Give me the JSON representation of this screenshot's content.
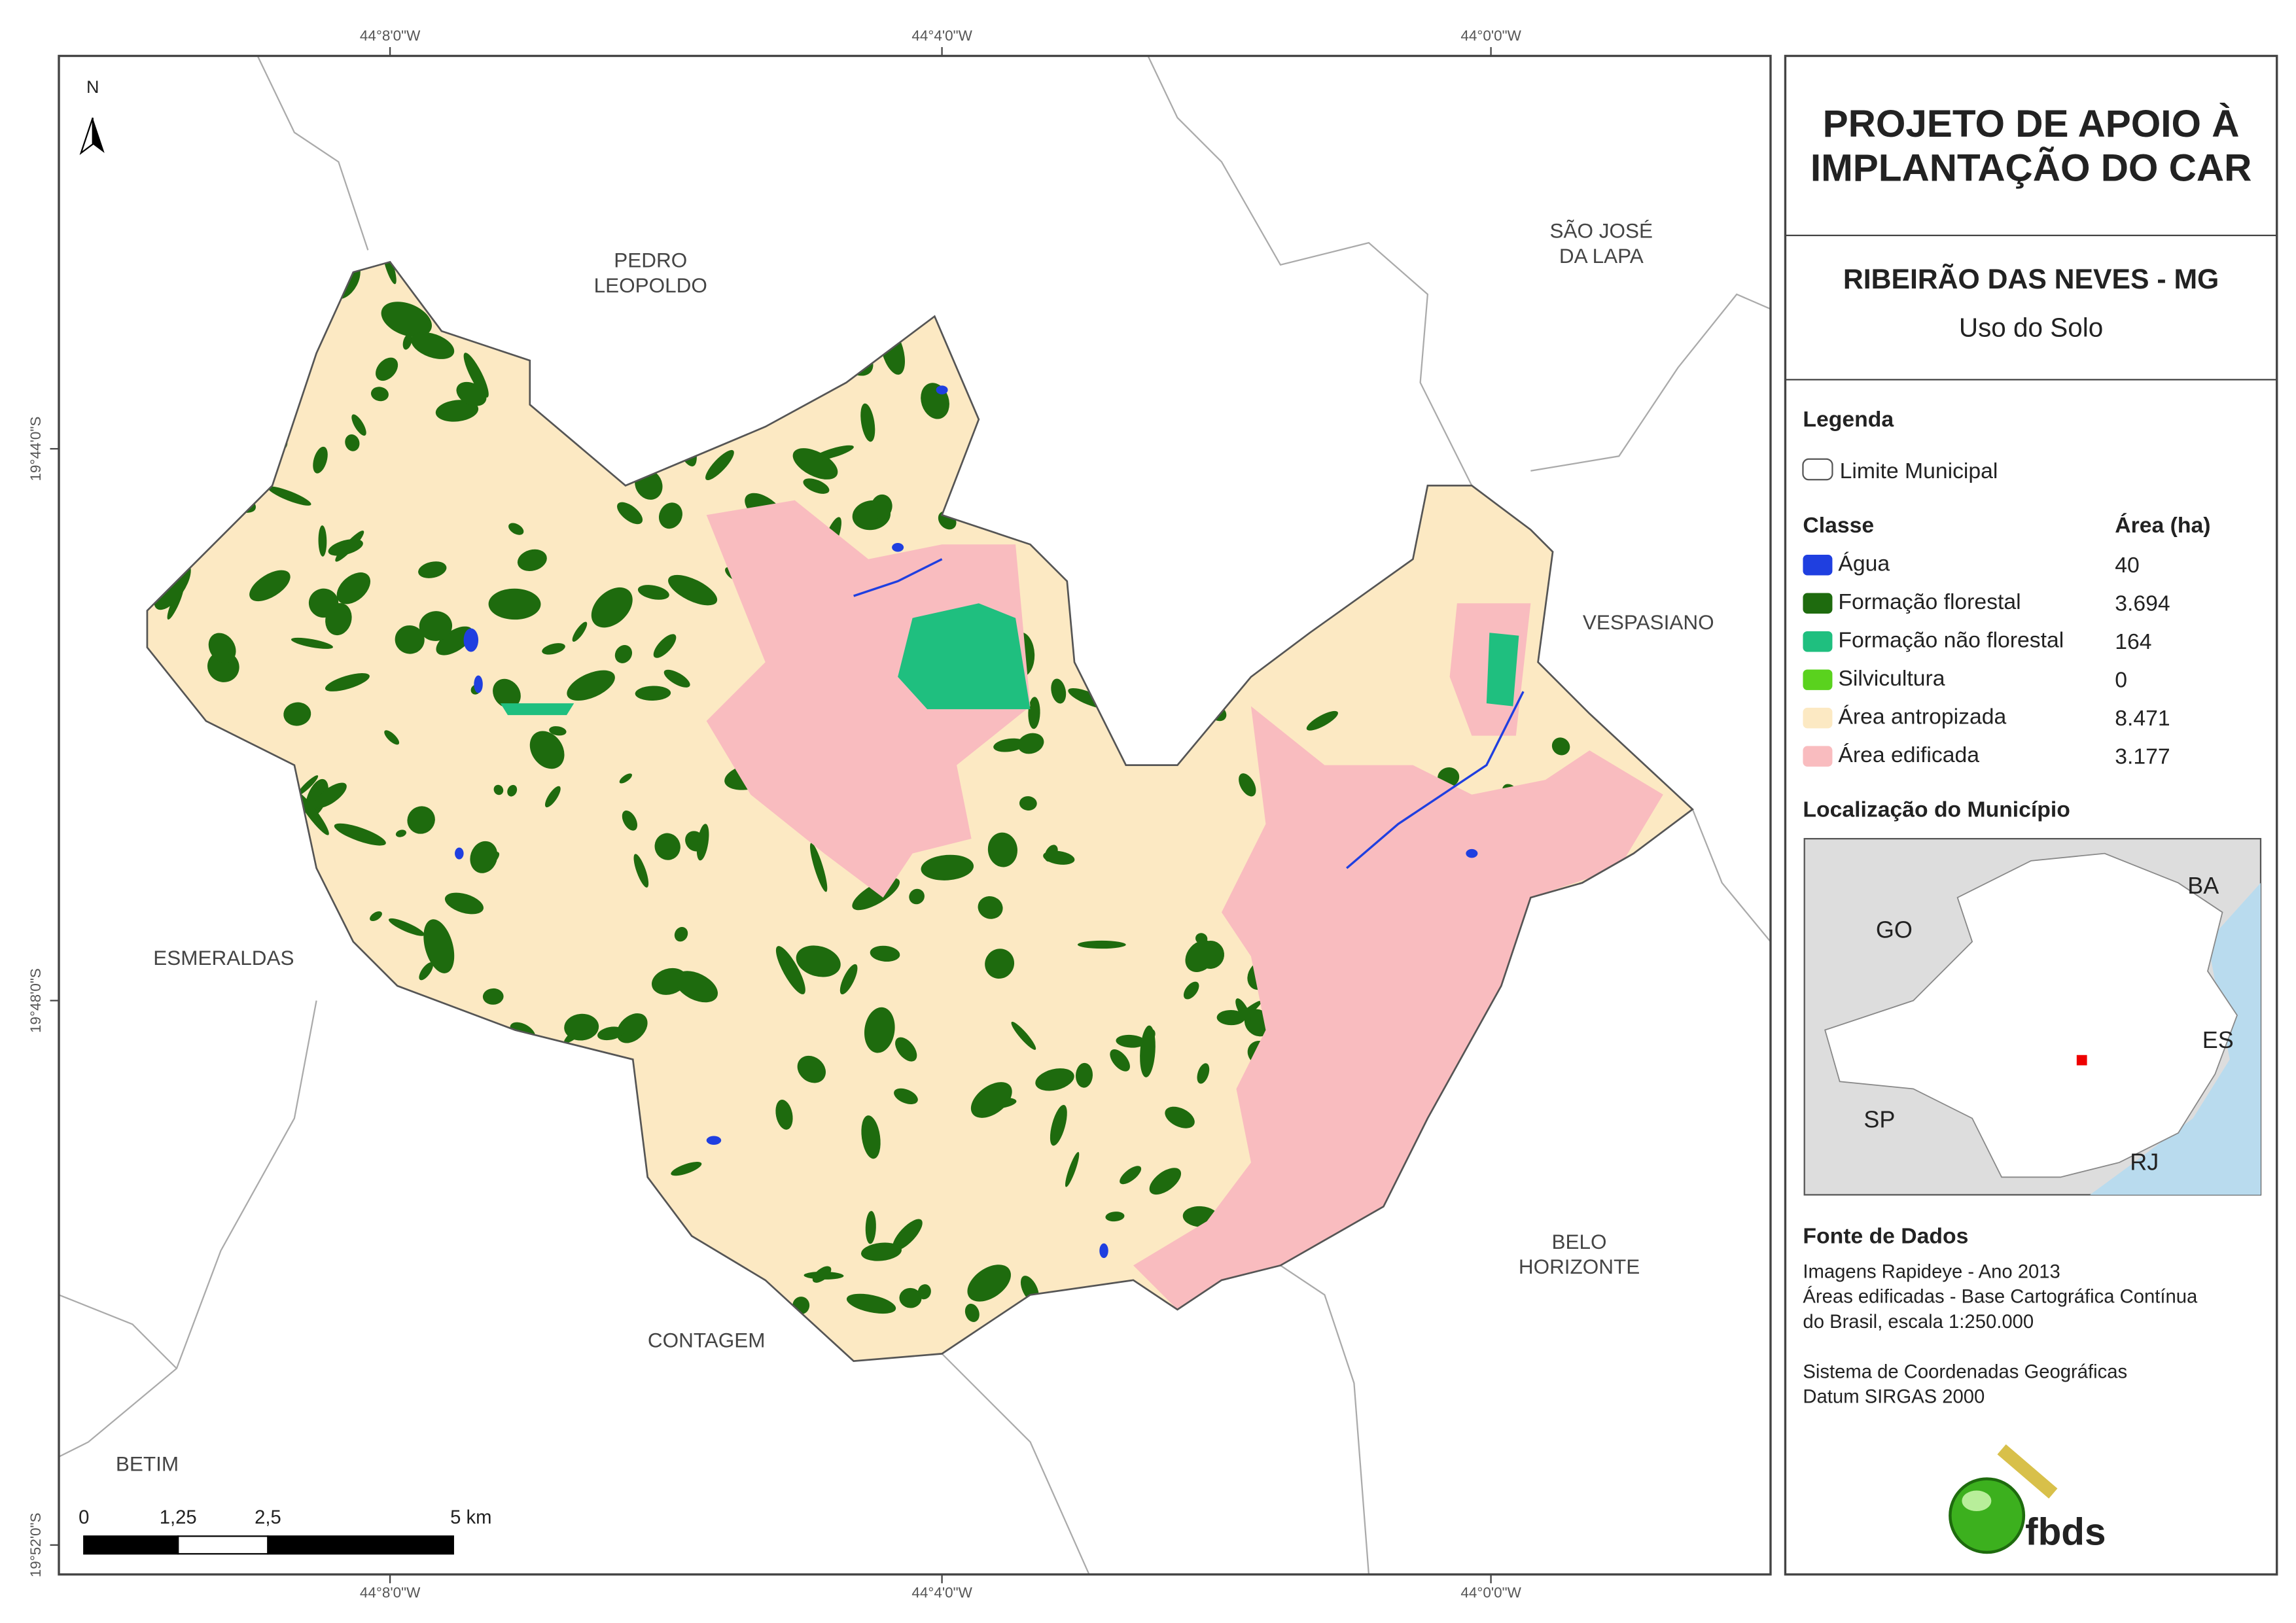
{
  "coordinates": {
    "top": [
      "44°8'0\"W",
      "44°4'0\"W",
      "44°0'0\"W"
    ],
    "bottom": [
      "44°8'0\"W",
      "44°4'0\"W",
      "44°0'0\"W"
    ],
    "left": [
      "19°44'0\"S",
      "19°48'0\"S",
      "19°52'0\"S"
    ]
  },
  "north": "N",
  "places": [
    {
      "lines": [
        "PEDRO",
        "LEOPOLDO"
      ]
    },
    {
      "lines": [
        "SÃO JOSÉ",
        "DA LAPA"
      ]
    },
    {
      "lines": [
        "VESPASIANO"
      ]
    },
    {
      "lines": [
        "ESMERALDAS"
      ]
    },
    {
      "lines": [
        "BELO",
        "HORIZONTE"
      ]
    },
    {
      "lines": [
        "CONTAGEM"
      ]
    },
    {
      "lines": [
        "BETIM"
      ]
    }
  ],
  "scale": {
    "labels": [
      "0",
      "1,25",
      "2,5",
      "5 km"
    ]
  },
  "panel": {
    "title": [
      "PROJETO DE APOIO À",
      "IMPLANTAÇÃO DO CAR"
    ],
    "municipality": "RIBEIRÃO DAS NEVES - MG",
    "theme": "Uso do Solo",
    "legend": {
      "title": "Legenda",
      "boundary": "Limite Municipal",
      "class_header": "Classe",
      "area_header": "Área (ha)",
      "classes": [
        {
          "name": "Água",
          "area": "40",
          "color": "#1f3fe0"
        },
        {
          "name": "Formação florestal",
          "area": "3.694",
          "color": "#1e6b0e"
        },
        {
          "name": "Formação não florestal",
          "area": "164",
          "color": "#1fbf7f"
        },
        {
          "name": "Silvicultura",
          "area": "0",
          "color": "#5ad21e"
        },
        {
          "name": "Área antropizada",
          "area": "8.471",
          "color": "#fce9c3"
        },
        {
          "name": "Área edificada",
          "area": "3.177",
          "color": "#f9bcbf"
        }
      ]
    },
    "location": {
      "title": "Localização do Município",
      "labels": [
        "GO",
        "BA",
        "ES",
        "SP",
        "RJ"
      ]
    },
    "sources": {
      "title": "Fonte de Dados",
      "lines": [
        "Imagens Rapideye - Ano 2013",
        "Áreas edificadas - Base Cartográfica Contínua",
        "do Brasil, escala 1:250.000",
        "",
        "Sistema de Coordenadas Geográficas",
        "Datum SIRGAS 2000"
      ]
    },
    "logo": "fbds"
  }
}
